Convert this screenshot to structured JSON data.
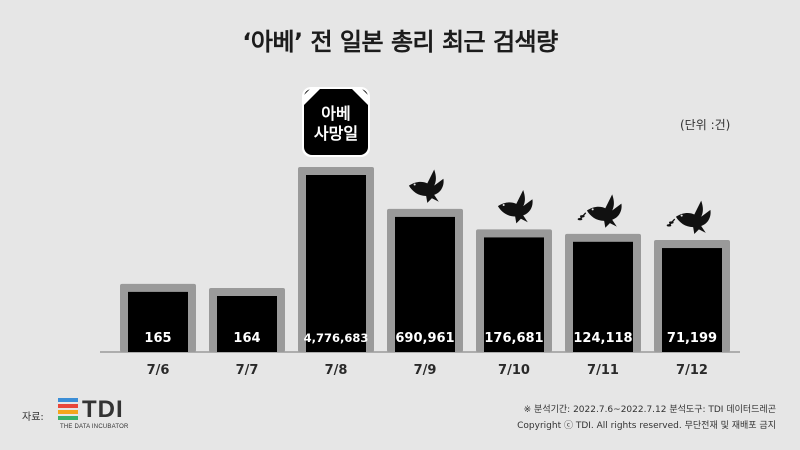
{
  "title": "‘아베’ 전 일본 총리 최근 검색량",
  "unit": "(단위 :건)",
  "chart_data": {
    "type": "bar",
    "title": "‘아베’ 전 일본 총리 최근 검색량",
    "categories": [
      "7/6",
      "7/7",
      "7/8",
      "7/9",
      "7/10",
      "7/11",
      "7/12"
    ],
    "values": [
      165,
      164,
      4776683,
      690961,
      176681,
      124118,
      71199
    ],
    "value_labels": [
      "165",
      "164",
      "4,776,683",
      "690,961",
      "176,681",
      "124,118",
      "71,199"
    ],
    "ylabel": "",
    "xlabel": "",
    "scale": "compressed (non-linear)",
    "grid": false,
    "legend": "none",
    "annotations": [
      {
        "category": "7/8",
        "text_lines": [
          "아베",
          "사망일"
        ],
        "style": "black mourning badge"
      },
      {
        "category": "7/9",
        "icon": "dove-icon"
      },
      {
        "category": "7/10",
        "icon": "dove-icon"
      },
      {
        "category": "7/11",
        "icon": "dove-with-branch-icon"
      },
      {
        "category": "7/12",
        "icon": "dove-with-branch-icon"
      }
    ]
  },
  "footer": {
    "source_label": "자료:",
    "logo_text": "TDI",
    "logo_subtext": "THE DATA INCUBATOR",
    "period": "※ 분석기간: 2022.7.6~2022.7.12  분석도구: TDI 데이터드레곤",
    "copyright": "Copyright ⓒ TDI. All rights reserved. 무단전재 및 재배포 금지"
  },
  "colors": {
    "background": "#e6e6e6",
    "bar_fill": "#000000",
    "bar_frame": "#9a9a9a",
    "value_text": "#ffffff"
  }
}
